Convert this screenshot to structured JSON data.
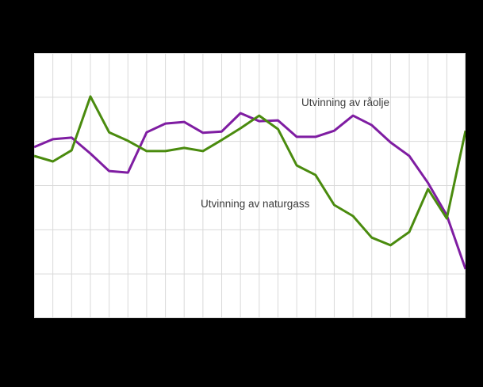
{
  "canvas": {
    "background": "#000000"
  },
  "chart": {
    "plot_background": "#ffffff",
    "grid_color": "#d9d9d9",
    "labels": {
      "raolje": "Utvinning av råolje",
      "naturgass": "Utvinning av naturgass"
    }
  },
  "chart_data": {
    "type": "line",
    "title": "",
    "xlabel": "",
    "ylabel": "",
    "x": [
      1,
      2,
      3,
      4,
      5,
      6,
      7,
      8,
      9,
      10,
      11,
      12,
      13,
      14,
      15,
      16,
      17,
      18,
      19,
      20,
      21,
      22,
      23,
      24
    ],
    "ylim": [
      0,
      100
    ],
    "grid": true,
    "legend": "inline-annotations",
    "series": [
      {
        "name": "Utvinning av råolje",
        "color": "#7f1da2",
        "values": [
          64.5,
          67.5,
          68.1,
          62.1,
          55.5,
          54.9,
          70.1,
          73.4,
          74.0,
          69.9,
          70.4,
          77.3,
          74.3,
          74.6,
          68.4,
          68.4,
          70.7,
          76.4,
          72.8,
          66.3,
          61.2,
          51.0,
          38.8,
          18.5
        ]
      },
      {
        "name": "Utvinning av naturgass",
        "color": "#4a8b0e",
        "values": [
          61.2,
          59.1,
          63.3,
          83.6,
          70.1,
          66.9,
          63.0,
          63.0,
          64.2,
          63.0,
          67.2,
          71.6,
          76.4,
          71.3,
          57.6,
          54.0,
          42.7,
          38.5,
          30.4,
          27.5,
          32.5,
          48.7,
          37.6,
          70.7
        ]
      }
    ]
  }
}
